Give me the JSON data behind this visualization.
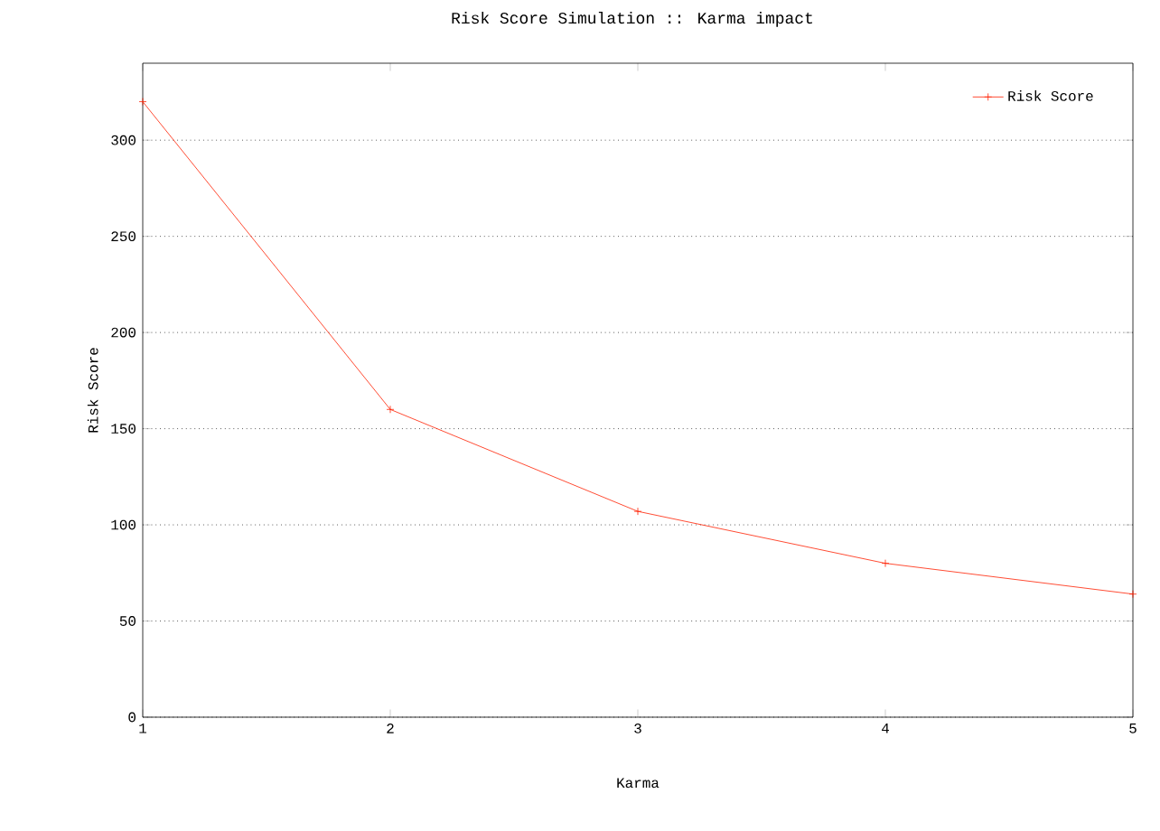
{
  "chart_data": {
    "type": "line",
    "title": "Risk Score Simulation :: Karma impact",
    "xlabel": "Karma",
    "ylabel": "Risk Score",
    "x": [
      1,
      2,
      3,
      4,
      5
    ],
    "series": [
      {
        "name": "Risk Score",
        "color": "#ff2000",
        "values": [
          320,
          160,
          107,
          80,
          64
        ]
      }
    ],
    "xlim": [
      1,
      5
    ],
    "ylim": [
      0,
      340
    ],
    "xticks": [
      1,
      2,
      3,
      4,
      5
    ],
    "yticks": [
      0,
      50,
      100,
      150,
      200,
      250,
      300
    ],
    "grid": "y",
    "legend": "top right",
    "marker": "cross",
    "line_style": "solid"
  }
}
